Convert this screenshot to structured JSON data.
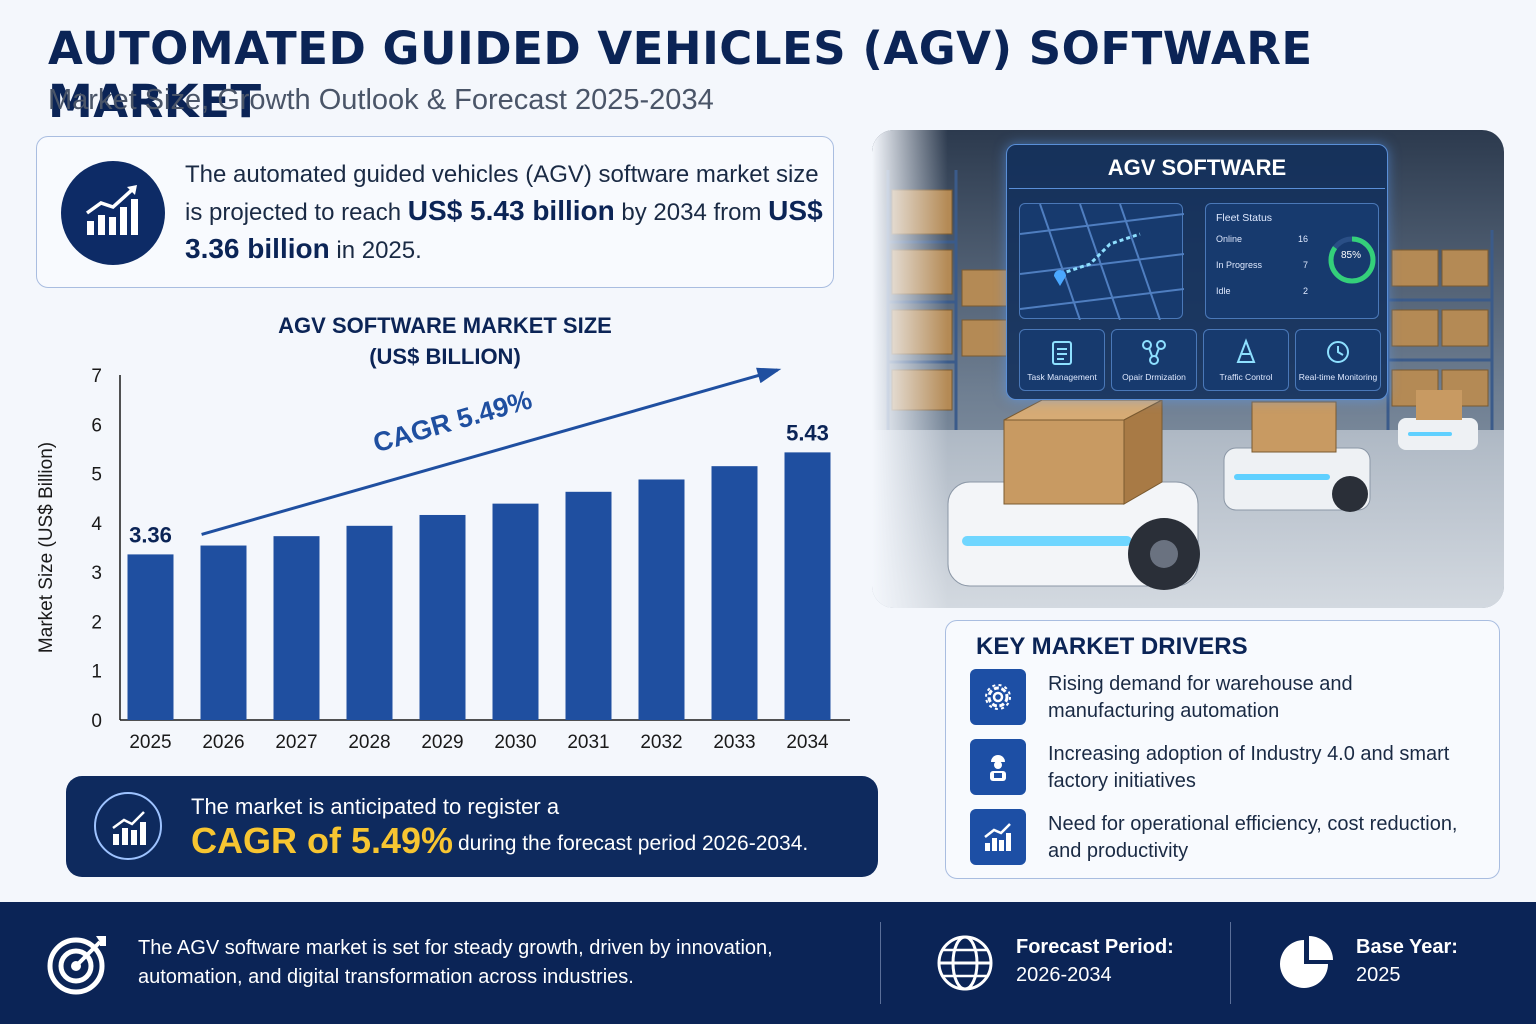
{
  "header": {
    "title": "AUTOMATED GUIDED VEHICLES (AGV) SOFTWARE MARKET",
    "subtitle": "Market Size, Growth Outlook & Forecast 2025-2034"
  },
  "summary": {
    "part1": "The automated guided vehicles (AGV) software market size is projected to reach ",
    "value_2034": "US$ 5.43 billion",
    "part2": " by 2034 from ",
    "value_2025": "US$ 3.36 billion",
    "part3": " in 2025."
  },
  "chart_title_line1": "AGV SOFTWARE MARKET SIZE",
  "chart_title_line2": "(US$ BILLION)",
  "chart_data": {
    "type": "bar",
    "categories": [
      "2025",
      "2026",
      "2027",
      "2028",
      "2029",
      "2030",
      "2031",
      "2032",
      "2033",
      "2034"
    ],
    "values": [
      3.36,
      3.54,
      3.73,
      3.94,
      4.16,
      4.39,
      4.63,
      4.88,
      5.15,
      5.43
    ],
    "ylabel": "Market Size (US$ Billion)",
    "ylim": [
      0,
      7
    ],
    "yticks": [
      0,
      1,
      2,
      3,
      4,
      5,
      6,
      7
    ],
    "data_labels": {
      "first": "3.36",
      "last": "5.43"
    },
    "annotation": "CAGR 5.49%",
    "bar_color": "#1f4fa0",
    "grid": false
  },
  "cagr_banner": {
    "line1": "The market is anticipated to register a",
    "highlight": "CAGR of 5.49%",
    "line2": "during the forecast period 2026-2034."
  },
  "photo": {
    "screen_title": "AGV SOFTWARE",
    "fleet_title": "Fleet Status",
    "fleet_rows": [
      {
        "label": "Online",
        "value": "16"
      },
      {
        "label": "In Progress",
        "value": "7"
      },
      {
        "label": "Idle",
        "value": "2"
      }
    ],
    "gauge_label": "85%",
    "tiles": [
      "Task Management",
      "Opair Drmization",
      "Traffic Control",
      "Real-time Monitoring"
    ]
  },
  "drivers": {
    "heading": "KEY MARKET DRIVERS",
    "items": [
      {
        "icon": "gear-icon",
        "text": "Rising demand for warehouse and manufacturing automation"
      },
      {
        "icon": "worker-icon",
        "text": "Increasing adoption of Industry 4.0 and smart factory initiatives"
      },
      {
        "icon": "growth-chart-icon",
        "text": "Need for operational efficiency, cost reduction, and productivity"
      }
    ]
  },
  "footer": {
    "text": "The AGV software market is set for steady growth, driven by innovation, automation, and digital transformation across industries.",
    "forecast_label": "Forecast Period:",
    "forecast_value": "2026-2034",
    "base_label": "Base Year:",
    "base_value": "2025"
  },
  "colors": {
    "navy": "#0b2456",
    "accent_yellow": "#f7c531",
    "bar_blue": "#1f4fa0"
  }
}
